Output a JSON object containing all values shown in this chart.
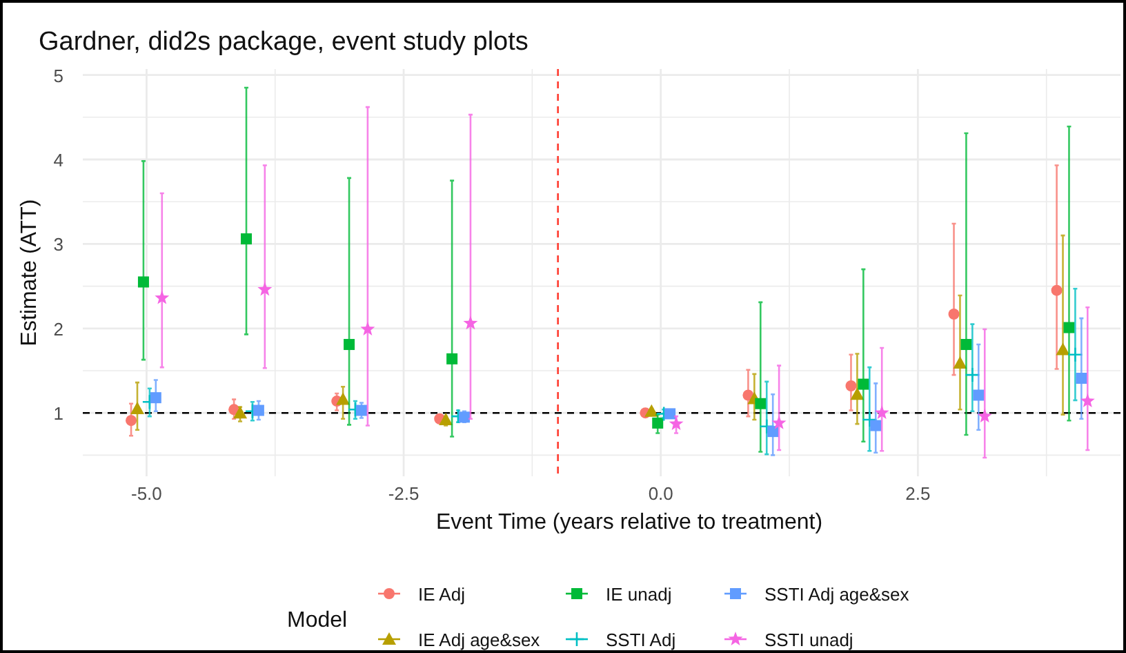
{
  "chart_data": {
    "type": "scatter",
    "title": "Gardner, did2s package, event study plots",
    "xlabel": "Event Time (years relative to treatment)",
    "ylabel": "Estimate (ATT)",
    "legend_title": "Model",
    "legend": "bottom",
    "grid": true,
    "xlim": [
      -5.62,
      4.47
    ],
    "ylim": [
      0.25,
      5.07
    ],
    "xticks": [
      {
        "value": -5,
        "label": "-5.0"
      },
      {
        "value": -3.75,
        "label": null
      },
      {
        "value": -2.5,
        "label": "-2.5"
      },
      {
        "value": -1.25,
        "label": null
      },
      {
        "value": 0,
        "label": "0.0"
      },
      {
        "value": 1.25,
        "label": null
      },
      {
        "value": 2.5,
        "label": "2.5"
      },
      {
        "value": 3.75,
        "label": null
      }
    ],
    "yticks": [
      {
        "value": 0.5,
        "label": null
      },
      1,
      {
        "value": 1.5,
        "label": null
      },
      2,
      {
        "value": 2.5,
        "label": null
      },
      3,
      {
        "value": 3.5,
        "label": null
      },
      4,
      {
        "value": 4.5,
        "label": null
      },
      5
    ],
    "ref_lines": [
      {
        "axis": "x",
        "value": -1,
        "color": "#ff3b30",
        "line_style": "dashed"
      },
      {
        "axis": "y",
        "value": 1,
        "color": "#000000",
        "line_style": "dashed"
      }
    ],
    "series": [
      {
        "name": "IE Adj",
        "color": "#f8766d",
        "marker": "circle",
        "x": [
          -5.15,
          -4.15,
          -3.15,
          -2.15,
          -0.15,
          0.85,
          1.85,
          2.85,
          3.85
        ],
        "values": [
          0.91,
          1.04,
          1.14,
          0.93,
          1.0,
          1.21,
          1.32,
          2.17,
          2.45
        ],
        "errors": [
          [
            0.73,
            1.11
          ],
          [
            0.93,
            1.16
          ],
          [
            1.03,
            1.23
          ],
          [
            0.88,
            0.97
          ],
          null,
          [
            0.96,
            1.51
          ],
          [
            1.03,
            1.69
          ],
          [
            1.45,
            3.24
          ],
          [
            1.52,
            3.93
          ]
        ]
      },
      {
        "name": "IE Adj age&sex",
        "color": "#b79f00",
        "marker": "triangle",
        "x": [
          -5.09,
          -4.09,
          -3.09,
          -2.09,
          -0.09,
          0.91,
          1.91,
          2.91,
          3.91
        ],
        "values": [
          1.05,
          1.0,
          1.16,
          0.92,
          1.02,
          1.17,
          1.22,
          1.59,
          1.75
        ],
        "errors": [
          [
            0.8,
            1.36
          ],
          [
            0.9,
            1.07
          ],
          [
            0.93,
            1.31
          ],
          [
            0.85,
            0.96
          ],
          [
            0.97,
            1.05
          ],
          [
            0.92,
            1.46
          ],
          [
            0.87,
            1.7
          ],
          [
            1.04,
            2.39
          ],
          [
            0.98,
            3.1
          ]
        ]
      },
      {
        "name": "IE unadj",
        "color": "#00ba38",
        "marker": "square",
        "x": [
          -5.03,
          -4.03,
          -3.03,
          -2.03,
          -0.03,
          0.97,
          1.97,
          2.97,
          3.97
        ],
        "values": [
          2.55,
          3.06,
          1.81,
          1.64,
          0.88,
          1.11,
          1.34,
          1.81,
          2.01
        ],
        "errors": [
          [
            1.63,
            3.98
          ],
          [
            1.93,
            4.85
          ],
          [
            0.86,
            3.78
          ],
          [
            0.72,
            3.75
          ],
          [
            0.76,
            0.98
          ],
          [
            0.54,
            2.31
          ],
          [
            0.66,
            2.7
          ],
          [
            0.74,
            4.31
          ],
          [
            0.91,
            4.39
          ]
        ]
      },
      {
        "name": "SSTI Adj",
        "color": "#00bfc4",
        "marker": "cross",
        "x": [
          -4.97,
          -3.97,
          -2.97,
          -1.97,
          0.03,
          1.03,
          2.03,
          3.03,
          4.03
        ],
        "values": [
          1.13,
          1.02,
          1.04,
          0.96,
          0.99,
          0.84,
          0.92,
          1.45,
          1.69
        ],
        "errors": [
          [
            0.96,
            1.29
          ],
          [
            0.91,
            1.13
          ],
          [
            0.93,
            1.14
          ],
          [
            0.89,
            1.03
          ],
          [
            0.94,
            1.04
          ],
          [
            0.51,
            1.37
          ],
          [
            0.55,
            1.54
          ],
          [
            1.02,
            2.05
          ],
          [
            1.15,
            2.47
          ]
        ]
      },
      {
        "name": "SSTI Adj age&sex",
        "color": "#619cff",
        "marker": "square",
        "x": [
          -4.91,
          -3.91,
          -2.91,
          -1.91,
          0.09,
          1.09,
          2.09,
          3.09,
          4.09
        ],
        "values": [
          1.18,
          1.03,
          1.03,
          0.95,
          0.99,
          0.78,
          0.85,
          1.21,
          1.41
        ],
        "errors": [
          [
            1.02,
            1.39
          ],
          [
            0.92,
            1.14
          ],
          [
            0.94,
            1.12
          ],
          [
            0.89,
            1.02
          ],
          null,
          [
            0.5,
            1.22
          ],
          [
            0.53,
            1.35
          ],
          [
            0.8,
            1.81
          ],
          [
            0.93,
            2.12
          ]
        ]
      },
      {
        "name": "SSTI unadj",
        "color": "#f564e3",
        "marker": "star",
        "x": [
          -4.85,
          -3.85,
          -2.85,
          -1.85,
          0.15,
          1.15,
          2.15,
          3.15,
          4.15
        ],
        "values": [
          2.36,
          2.46,
          1.99,
          2.06,
          0.87,
          0.88,
          1.0,
          0.96,
          1.14
        ],
        "errors": [
          [
            1.54,
            3.6
          ],
          [
            1.53,
            3.93
          ],
          [
            0.85,
            4.62
          ],
          [
            0.93,
            4.53
          ],
          [
            0.76,
            0.96
          ],
          [
            0.56,
            1.56
          ],
          [
            0.55,
            1.77
          ],
          [
            0.47,
            1.99
          ],
          [
            0.56,
            2.25
          ]
        ]
      }
    ]
  }
}
